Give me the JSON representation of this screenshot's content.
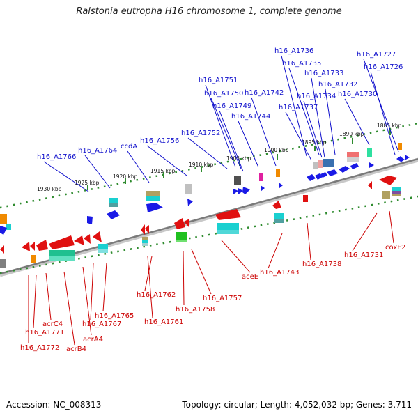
{
  "title": "Ralstonia eutropha H16 chromosome 1, complete genome",
  "footer": {
    "accession": "Accession: NC_008313",
    "stats": "Topology: circular; Length: 4,052,032 bp; Genes: 3,711"
  },
  "colors": {
    "forward_label": "#1010cc",
    "reverse_label": "#cc0000",
    "backbone": "#808080",
    "ticks": "#2e8b2e"
  },
  "kbp_ticks": [
    "1930 kbp",
    "1925 kbp",
    "1920 kbp",
    "1915 kbp",
    "1910 kbp",
    "1905 kbp",
    "1900 kbp",
    "1895 kbp",
    "1890 kbp",
    "1885 kbp"
  ],
  "forward_genes": [
    "h16_A1736",
    "h16_A1727",
    "h16_A1735",
    "h16_A1726",
    "h16_A1733",
    "h16_A1751",
    "h16_A1732",
    "h16_A1750",
    "h16_A1742",
    "h16_A1734",
    "h16_A1730",
    "h16_A1749",
    "h16_A1737",
    "h16_A1744",
    "h16_A1752",
    "ccdA",
    "h16_A1756",
    "h16_A1764",
    "h16_A1766"
  ],
  "reverse_genes": [
    "coxF2",
    "h16_A1731",
    "h16_A1738",
    "h16_A1743",
    "aceE",
    "h16_A1757",
    "h16_A1762",
    "h16_A1758",
    "h16_A1761",
    "h16_A1765",
    "h16_A1767",
    "acrA4",
    "acrC4",
    "h16_A1771",
    "h16_A1772",
    "acrB4"
  ]
}
